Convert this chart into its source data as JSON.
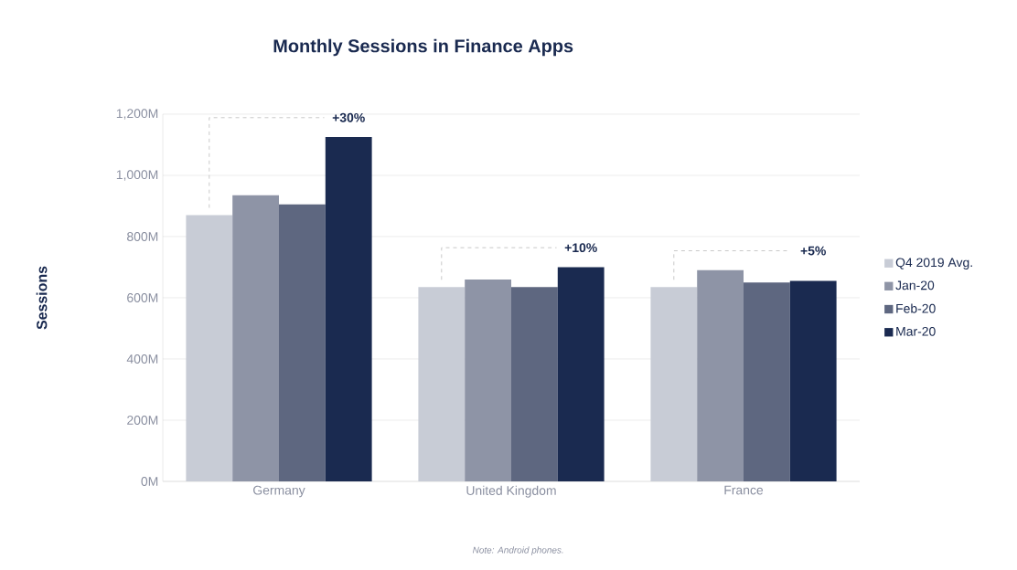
{
  "chart_data": {
    "type": "bar",
    "title": "Monthly Sessions in Finance Apps",
    "ylabel": "Sessions",
    "categories": [
      "Germany",
      "United Kingdom",
      "France"
    ],
    "series": [
      {
        "name": "Q4 2019 Avg.",
        "color": "#c8ccd6",
        "values": [
          870,
          635,
          635
        ]
      },
      {
        "name": "Jan-20",
        "color": "#8e94a6",
        "values": [
          935,
          660,
          690
        ]
      },
      {
        "name": "Feb-20",
        "color": "#5e6780",
        "values": [
          905,
          635,
          650
        ]
      },
      {
        "name": "Mar-20",
        "color": "#1a2a50",
        "values": [
          1125,
          700,
          655
        ]
      }
    ],
    "ylim": [
      0,
      1200
    ],
    "yticks": [
      {
        "value": 0,
        "label": "0M"
      },
      {
        "value": 200,
        "label": "200M"
      },
      {
        "value": 400,
        "label": "400M"
      },
      {
        "value": 600,
        "label": "600M"
      },
      {
        "value": 800,
        "label": "800M"
      },
      {
        "value": 1000,
        "label": "1,000M"
      },
      {
        "value": 1200,
        "label": "1,200M"
      }
    ],
    "grid": "y",
    "legend": "right",
    "annotations": [
      "+30%",
      "+10%",
      "+5%",
      "Note: Android phones."
    ]
  }
}
